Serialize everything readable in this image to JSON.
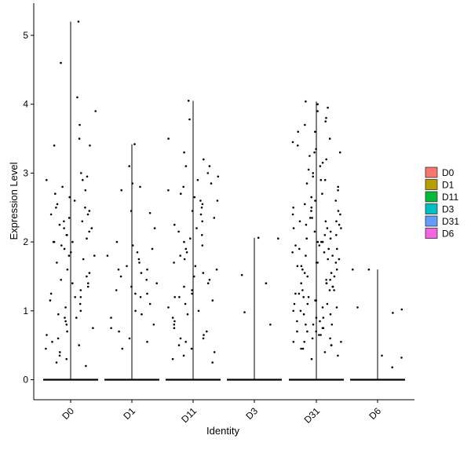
{
  "chart_data": {
    "type": "violin",
    "xlabel": "Identity",
    "ylabel": "Expression Level",
    "categories": [
      "D0",
      "D1",
      "D11",
      "D3",
      "D31",
      "D6"
    ],
    "yticks": [
      0,
      1,
      2,
      3,
      4,
      5
    ],
    "ylim": [
      -0.3,
      5.45
    ],
    "legend": {
      "position": "right",
      "entries": [
        {
          "label": "D0",
          "color": "#F8766D"
        },
        {
          "label": "D1",
          "color": "#B79F00"
        },
        {
          "label": "D11",
          "color": "#00BA38"
        },
        {
          "label": "D3",
          "color": "#00BFC4"
        },
        {
          "label": "D31",
          "color": "#619CFF"
        },
        {
          "label": "D6",
          "color": "#F564E3"
        }
      ]
    },
    "series": [
      {
        "name": "D0",
        "max": 5.2,
        "points": [
          5.2,
          4.6,
          4.1,
          3.9,
          3.7,
          3.5,
          3.4,
          3.4,
          3.0,
          2.95,
          2.9,
          2.8,
          2.75,
          2.7,
          2.6,
          2.55,
          2.5,
          2.5,
          2.45,
          2.4,
          2.4,
          2.35,
          2.3,
          2.3,
          2.25,
          2.2,
          2.2,
          2.15,
          2.1,
          2.1,
          2.05,
          2.0,
          2.0,
          1.95,
          1.9,
          1.85,
          1.8,
          1.8,
          1.75,
          1.7,
          1.6,
          1.55,
          1.5,
          1.45,
          1.4,
          1.35,
          1.3,
          1.25,
          1.2,
          1.15,
          1.1,
          1.05,
          1.0,
          0.95,
          0.9,
          0.85,
          0.8,
          0.75,
          0.7,
          0.65,
          0.6,
          0.55,
          0.5,
          0.45,
          0.4,
          0.35,
          0.3,
          0.25,
          0.2,
          2.65,
          2.0,
          1.4,
          0.9,
          1.2,
          2.9
        ]
      },
      {
        "name": "D1",
        "max": 3.42,
        "points": [
          3.42,
          3.1,
          2.85,
          2.8,
          2.75,
          2.45,
          2.2,
          2.0,
          1.95,
          1.9,
          1.85,
          1.8,
          1.75,
          1.7,
          1.65,
          1.6,
          1.55,
          1.5,
          1.45,
          1.4,
          1.35,
          1.3,
          1.25,
          1.2,
          1.1,
          1.0,
          0.95,
          0.9,
          0.8,
          0.75,
          0.7,
          0.6,
          0.55,
          0.45,
          2.42,
          1.6,
          1.25
        ]
      },
      {
        "name": "D11",
        "max": 4.05,
        "points": [
          4.05,
          3.78,
          3.5,
          3.3,
          3.2,
          3.1,
          3.0,
          2.95,
          2.9,
          2.85,
          2.8,
          2.75,
          2.7,
          2.65,
          2.6,
          2.55,
          2.5,
          2.45,
          2.4,
          2.35,
          2.3,
          2.25,
          2.2,
          2.15,
          2.1,
          2.05,
          2.0,
          1.95,
          1.9,
          1.85,
          1.8,
          1.75,
          1.7,
          1.65,
          1.6,
          1.55,
          1.5,
          1.45,
          1.4,
          1.35,
          1.3,
          1.25,
          1.2,
          1.15,
          1.1,
          1.05,
          1.0,
          0.95,
          0.9,
          0.85,
          0.8,
          0.75,
          0.7,
          0.65,
          0.6,
          0.55,
          0.5,
          0.45,
          0.4,
          0.35,
          0.3,
          0.25,
          3.1,
          2.6,
          1.2,
          0.6
        ]
      },
      {
        "name": "D3",
        "max": 2.06,
        "points": [
          2.06,
          2.05,
          1.52,
          1.4,
          0.98,
          0.8
        ]
      },
      {
        "name": "D31",
        "max": 4.04,
        "points": [
          4.04,
          4.0,
          3.95,
          3.9,
          3.8,
          3.75,
          3.7,
          3.6,
          3.5,
          3.45,
          3.4,
          3.35,
          3.3,
          3.25,
          3.2,
          3.15,
          3.1,
          3.05,
          3.0,
          2.95,
          2.9,
          2.85,
          2.8,
          2.75,
          2.7,
          2.65,
          2.6,
          2.55,
          2.5,
          2.5,
          2.45,
          2.45,
          2.4,
          2.4,
          2.35,
          2.35,
          2.3,
          2.3,
          2.25,
          2.25,
          2.2,
          2.2,
          2.15,
          2.15,
          2.1,
          2.1,
          2.05,
          2.05,
          2.0,
          2.0,
          1.95,
          1.95,
          1.9,
          1.9,
          1.85,
          1.85,
          1.8,
          1.8,
          1.75,
          1.75,
          1.7,
          1.7,
          1.65,
          1.65,
          1.6,
          1.6,
          1.55,
          1.55,
          1.5,
          1.5,
          1.45,
          1.45,
          1.4,
          1.4,
          1.35,
          1.35,
          1.3,
          1.3,
          1.25,
          1.25,
          1.2,
          1.2,
          1.15,
          1.15,
          1.1,
          1.1,
          1.05,
          1.05,
          1.0,
          1.0,
          0.95,
          0.95,
          0.9,
          0.9,
          0.85,
          0.85,
          0.8,
          0.8,
          0.75,
          0.75,
          0.7,
          0.7,
          0.65,
          0.65,
          0.6,
          0.6,
          0.55,
          0.55,
          0.5,
          0.5,
          0.45,
          0.45,
          0.4,
          0.35,
          0.3,
          3.6,
          3.3,
          2.9,
          2.6,
          2.3,
          2.0,
          1.7,
          1.4,
          1.1,
          0.8,
          0.55,
          2.2,
          1.9,
          1.3,
          0.7
        ]
      },
      {
        "name": "D6",
        "max": 1.6,
        "points": [
          1.6,
          1.6,
          1.05,
          1.02,
          0.97,
          0.35,
          0.32,
          0.18
        ]
      }
    ]
  }
}
